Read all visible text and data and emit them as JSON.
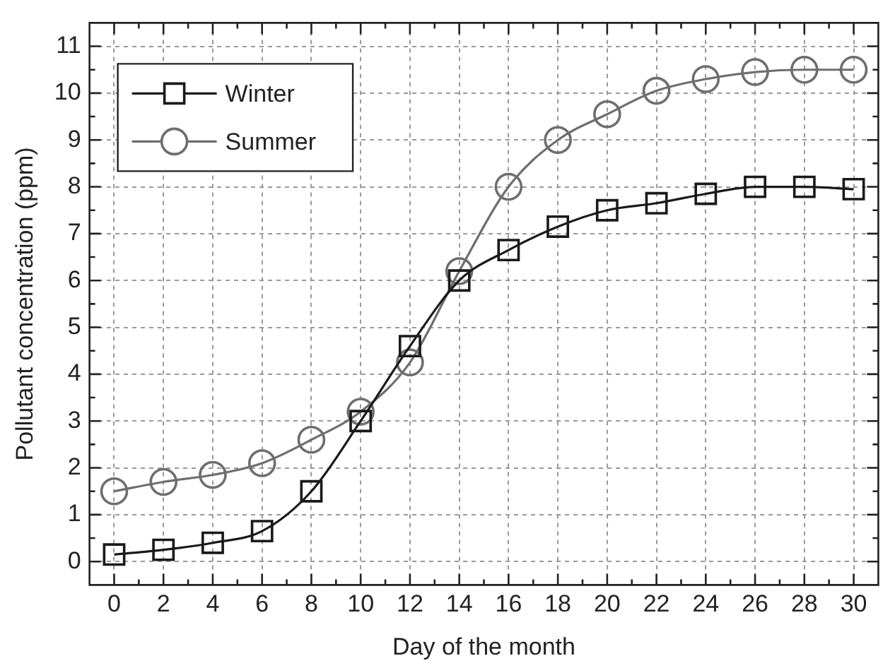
{
  "chart_data": {
    "type": "line",
    "xlabel": "Day of the month",
    "ylabel": "Pollutant concentration (ppm)",
    "x": [
      0,
      2,
      4,
      6,
      8,
      10,
      12,
      14,
      16,
      18,
      20,
      22,
      24,
      26,
      28,
      30
    ],
    "series": [
      {
        "name": "Winter",
        "color": "#1a1a1a",
        "marker": "square",
        "values": [
          0.15,
          0.25,
          0.4,
          0.65,
          1.5,
          3.0,
          4.6,
          6.0,
          6.65,
          7.15,
          7.5,
          7.65,
          7.85,
          8.0,
          8.0,
          7.95
        ]
      },
      {
        "name": "Summer",
        "color": "#6e6e6e",
        "marker": "circle",
        "values": [
          1.5,
          1.7,
          1.85,
          2.1,
          2.6,
          3.2,
          4.25,
          6.2,
          8.0,
          9.0,
          9.55,
          10.05,
          10.3,
          10.45,
          10.5,
          10.5
        ]
      }
    ],
    "xlim": [
      -1,
      31
    ],
    "xticks": [
      0,
      2,
      4,
      6,
      8,
      10,
      12,
      14,
      16,
      18,
      20,
      22,
      24,
      26,
      28,
      30
    ],
    "ylim": [
      -0.5,
      11.5
    ],
    "yticks": [
      0,
      1,
      2,
      3,
      4,
      5,
      6,
      7,
      8,
      9,
      10,
      11
    ],
    "grid": true,
    "legend": "top left",
    "line_style": "solid"
  }
}
